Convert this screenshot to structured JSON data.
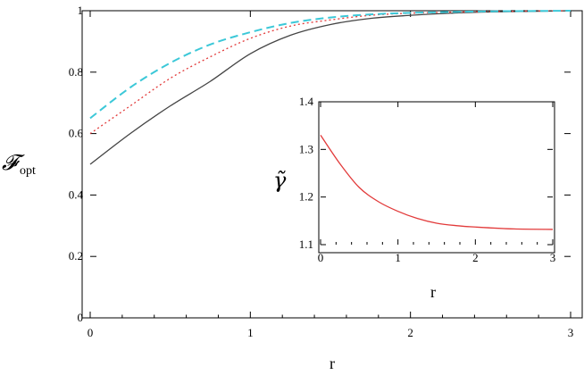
{
  "chart_data": [
    {
      "type": "line",
      "xlabel": "r",
      "ylabel": "𝓕",
      "ylabel_sub": "opt",
      "xlim": [
        0,
        3
      ],
      "ylim": [
        0,
        1
      ],
      "xticks": [
        "0",
        "1",
        "2",
        "3"
      ],
      "yticks": [
        "0",
        "0.2",
        "0.4",
        "0.6",
        "0.8",
        "1"
      ],
      "grid": false,
      "series": [
        {
          "style": "solid",
          "color": "#444444",
          "x": [
            0,
            0.25,
            0.5,
            0.75,
            1.0,
            1.25,
            1.5,
            1.75,
            2.0,
            2.25,
            2.5,
            2.75,
            3.0
          ],
          "y": [
            0.5,
            0.6,
            0.69,
            0.77,
            0.86,
            0.92,
            0.955,
            0.975,
            0.985,
            0.992,
            0.996,
            0.998,
            1.0
          ]
        },
        {
          "style": "dotted",
          "color": "#e23a3a",
          "x": [
            0,
            0.25,
            0.5,
            0.75,
            1.0,
            1.25,
            1.5,
            1.75,
            2.0,
            2.25,
            2.5,
            2.75,
            3.0
          ],
          "y": [
            0.6,
            0.69,
            0.78,
            0.85,
            0.91,
            0.95,
            0.97,
            0.985,
            0.992,
            0.995,
            0.997,
            0.999,
            1.0
          ]
        },
        {
          "style": "dashed",
          "color": "#3cc8d8",
          "x": [
            0,
            0.25,
            0.5,
            0.75,
            1.0,
            1.25,
            1.5,
            1.75,
            2.0,
            2.25,
            2.5,
            2.75,
            3.0
          ],
          "y": [
            0.65,
            0.75,
            0.83,
            0.89,
            0.93,
            0.96,
            0.978,
            0.988,
            0.993,
            0.996,
            0.998,
            0.999,
            1.0
          ]
        }
      ]
    },
    {
      "type": "line",
      "xlabel": "r",
      "ylabel": "γ̃",
      "xlim": [
        0,
        3
      ],
      "ylim": [
        1.1,
        1.4
      ],
      "xticks": [
        "0",
        "1",
        "2",
        "3"
      ],
      "yticks": [
        "1.1",
        "1.2",
        "1.3",
        "1.4"
      ],
      "grid": false,
      "series": [
        {
          "style": "solid",
          "color": "#e23a3a",
          "x": [
            0,
            0.25,
            0.5,
            0.75,
            1.0,
            1.25,
            1.5,
            1.75,
            2.0,
            2.5,
            3.0
          ],
          "y": [
            1.33,
            1.27,
            1.22,
            1.19,
            1.17,
            1.155,
            1.145,
            1.14,
            1.137,
            1.133,
            1.132
          ]
        }
      ]
    }
  ]
}
